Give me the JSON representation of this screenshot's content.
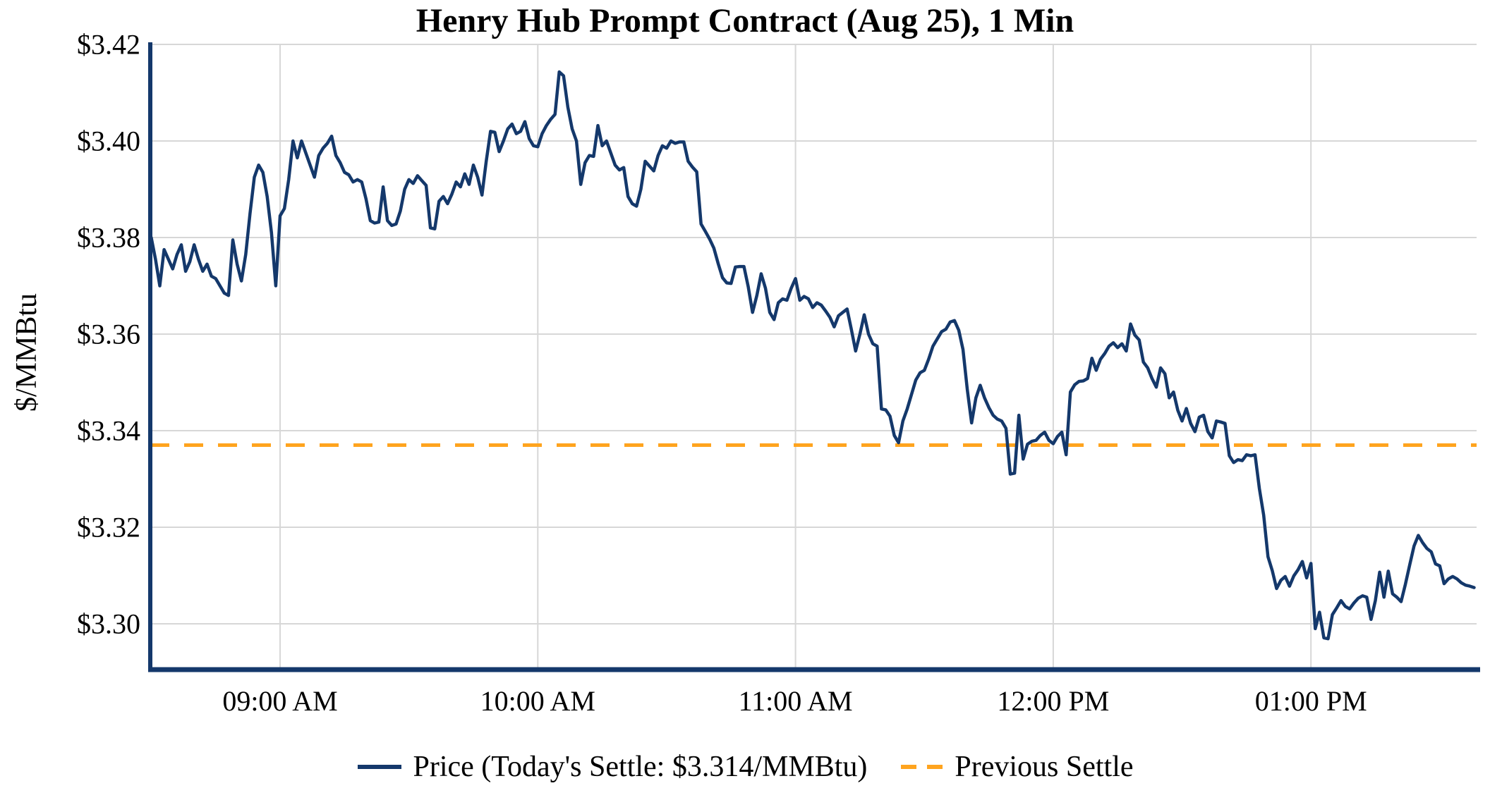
{
  "chart_data": {
    "type": "line",
    "title": "Henry Hub Prompt Contract (Aug 25), 1 Min",
    "ylabel": "$/MMBtu",
    "xlabel": "",
    "grid": true,
    "legend_position": "bottom",
    "ylim": [
      3.2905,
      3.42
    ],
    "x_start_minute": 510,
    "x_end_minute": 818,
    "x_step_minutes": 1,
    "x_ticks": [
      {
        "minute": 540,
        "label": "09:00 AM"
      },
      {
        "minute": 600,
        "label": "10:00 AM"
      },
      {
        "minute": 660,
        "label": "11:00 AM"
      },
      {
        "minute": 720,
        "label": "12:00 PM"
      },
      {
        "minute": 780,
        "label": "01:00 PM"
      }
    ],
    "y_ticks": [
      {
        "value": 3.3,
        "label": "$3.30"
      },
      {
        "value": 3.32,
        "label": "$3.32"
      },
      {
        "value": 3.34,
        "label": "$3.34"
      },
      {
        "value": 3.36,
        "label": "$3.36"
      },
      {
        "value": 3.38,
        "label": "$3.38"
      },
      {
        "value": 3.4,
        "label": "$3.40"
      },
      {
        "value": 3.42,
        "label": "$3.42"
      }
    ],
    "colors": {
      "price": "#14386b",
      "previous_settle": "#ffa41e",
      "grid": "#d7d7d7",
      "axis": "#14386b",
      "text": "#000000",
      "background": "#ffffff"
    },
    "previous_settle_value": 3.337,
    "todays_settle_value": 3.314,
    "series": [
      {
        "name": "Price (Today's Settle: $3.314/MMBtu)",
        "type": "line",
        "start_minute": 510,
        "step_minutes": 1,
        "values": [
          3.38,
          3.3755,
          3.37,
          3.3775,
          3.3755,
          3.3735,
          3.3765,
          3.3785,
          3.373,
          3.375,
          3.3785,
          3.3755,
          3.373,
          3.3745,
          3.372,
          3.3715,
          3.37,
          3.3685,
          3.368,
          3.3795,
          3.3745,
          3.371,
          3.3765,
          3.385,
          3.3925,
          3.395,
          3.3935,
          3.3885,
          3.381,
          3.37,
          3.3845,
          3.386,
          3.392,
          3.4,
          3.3965,
          3.4,
          3.3975,
          3.395,
          3.3925,
          3.397,
          3.3985,
          3.3995,
          3.401,
          3.397,
          3.3955,
          3.3935,
          3.393,
          3.3915,
          3.392,
          3.3915,
          3.388,
          3.3835,
          3.383,
          3.3832,
          3.3905,
          3.3835,
          3.3825,
          3.3828,
          3.3855,
          3.39,
          3.392,
          3.3912,
          3.3928,
          3.3918,
          3.3908,
          3.382,
          3.3818,
          3.3875,
          3.3885,
          3.387,
          3.389,
          3.3915,
          3.3905,
          3.3932,
          3.391,
          3.395,
          3.3925,
          3.3888,
          3.3958,
          3.402,
          3.4018,
          3.3978,
          3.4,
          3.4025,
          3.4035,
          3.4015,
          3.402,
          3.404,
          3.4005,
          3.399,
          3.3988,
          3.4015,
          3.4032,
          3.4045,
          3.4055,
          3.4143,
          3.4135,
          3.407,
          3.4025,
          3.4,
          3.391,
          3.3955,
          3.397,
          3.3968,
          3.4032,
          3.399,
          3.4,
          3.3975,
          3.395,
          3.394,
          3.3945,
          3.3885,
          3.387,
          3.3865,
          3.39,
          3.3958,
          3.3948,
          3.3938,
          3.397,
          3.399,
          3.3985,
          3.4,
          3.3995,
          3.3998,
          3.3998,
          3.3958,
          3.3946,
          3.3936,
          3.3828,
          3.3813,
          3.3797,
          3.3778,
          3.3746,
          3.3717,
          3.3706,
          3.3705,
          3.3739,
          3.374,
          3.374,
          3.3698,
          3.3645,
          3.368,
          3.3725,
          3.3695,
          3.3645,
          3.363,
          3.3665,
          3.3673,
          3.367,
          3.3695,
          3.3715,
          3.367,
          3.3678,
          3.3673,
          3.3655,
          3.3665,
          3.366,
          3.3648,
          3.3635,
          3.3615,
          3.3638,
          3.3645,
          3.3652,
          3.361,
          3.3565,
          3.36,
          3.364,
          3.36,
          3.358,
          3.3575,
          3.3445,
          3.3443,
          3.343,
          3.339,
          3.3375,
          3.342,
          3.3445,
          3.3475,
          3.3505,
          3.352,
          3.3525,
          3.3548,
          3.3575,
          3.359,
          3.3605,
          3.361,
          3.3625,
          3.3628,
          3.3608,
          3.3568,
          3.3485,
          3.3416,
          3.3468,
          3.3494,
          3.3468,
          3.3448,
          3.3432,
          3.3424,
          3.342,
          3.3405,
          3.331,
          3.3312,
          3.3432,
          3.3341,
          3.3372,
          3.3378,
          3.338,
          3.339,
          3.3397,
          3.338,
          3.3373,
          3.3388,
          3.3397,
          3.335,
          3.348,
          3.3495,
          3.3502,
          3.3503,
          3.3508,
          3.355,
          3.3525,
          3.3548,
          3.356,
          3.3575,
          3.3582,
          3.3572,
          3.358,
          3.3565,
          3.3621,
          3.3598,
          3.3588,
          3.3542,
          3.353,
          3.3508,
          3.349,
          3.353,
          3.3518,
          3.3468,
          3.348,
          3.3442,
          3.342,
          3.3446,
          3.3415,
          3.3398,
          3.3428,
          3.3432,
          3.3398,
          3.3385,
          3.342,
          3.3418,
          3.3415,
          3.3348,
          3.3334,
          3.334,
          3.3338,
          3.335,
          3.3348,
          3.335,
          3.328,
          3.3225,
          3.3139,
          3.311,
          3.3073,
          3.309,
          3.3098,
          3.3078,
          3.3099,
          3.3112,
          3.3129,
          3.3095,
          3.3125,
          3.299,
          3.3024,
          3.2971,
          3.2969,
          3.3019,
          3.3033,
          3.3048,
          3.3036,
          3.3031,
          3.3043,
          3.3053,
          3.3058,
          3.3055,
          3.3009,
          3.3048,
          3.3107,
          3.3055,
          3.3109,
          3.3062,
          3.3055,
          3.3046,
          3.3082,
          3.3122,
          3.3161,
          3.3183,
          3.3168,
          3.3156,
          3.3149,
          3.3124,
          3.312,
          3.3083,
          3.3093,
          3.3098,
          3.3093,
          3.3085,
          3.308,
          3.3078,
          3.3075
        ]
      },
      {
        "name": "Previous Settle",
        "type": "dashed-horizontal",
        "value": 3.337
      }
    ]
  },
  "legend": {
    "price_label": "Price (Today's Settle: $3.314/MMBtu)",
    "previous_settle_label": "Previous Settle"
  }
}
